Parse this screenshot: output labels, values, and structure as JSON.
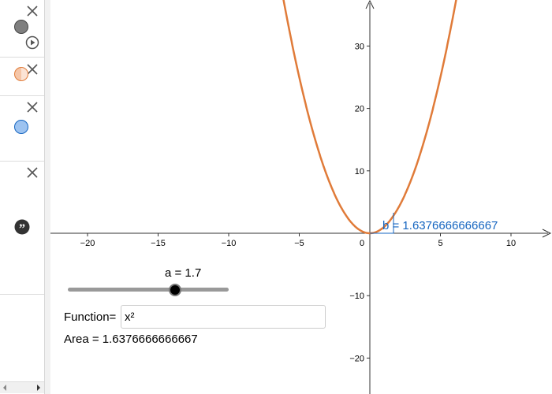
{
  "algebra_panel": {
    "items": [
      {
        "color": "#7f7f7f",
        "border": "#444444",
        "icon": "close-icon"
      },
      {
        "color": "#f5c6a8",
        "border": "#e07b39",
        "icon": "close-icon"
      },
      {
        "color": "#9dc3f0",
        "border": "#1565c0",
        "icon": "close-icon"
      },
      {
        "icon": "quote-icon"
      }
    ]
  },
  "graph": {
    "x_ticks": [
      "−20",
      "−15",
      "−10",
      "−5",
      "0",
      "5",
      "10"
    ],
    "y_ticks": [
      "30",
      "20",
      "10",
      "−10",
      "−20"
    ],
    "curve_color": "#e07b39",
    "function_expr": "x²"
  },
  "slider": {
    "label": "a = 1.7",
    "value": 1.7
  },
  "function_input": {
    "label": "Function=",
    "value": "x²"
  },
  "area": {
    "text": "Area = 1.6376666666667"
  },
  "b_label": {
    "text": "b = 1.6376666666667",
    "color": "#1565c0"
  }
}
